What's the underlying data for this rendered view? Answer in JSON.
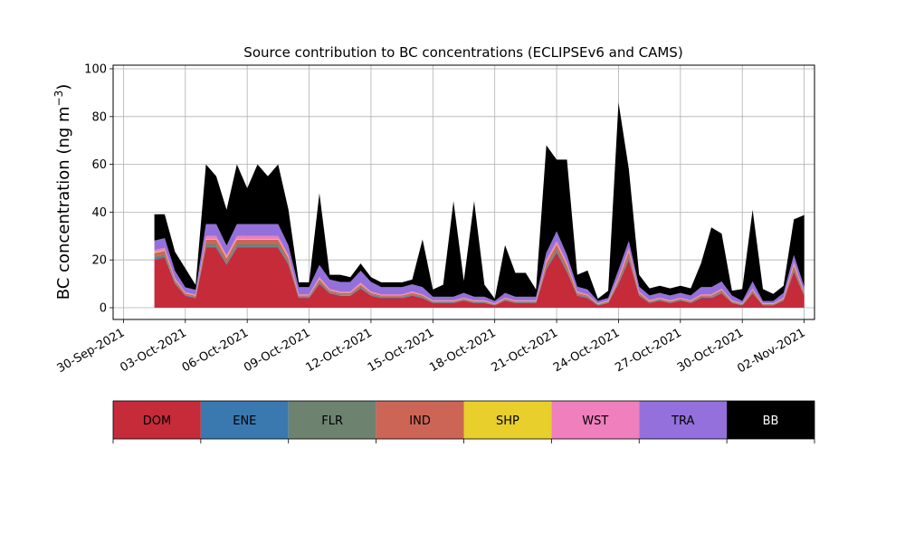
{
  "chart_data": {
    "type": "area",
    "stacked": true,
    "title": "Source contribution to BC concentrations (ECLIPSEv6 and CAMS)",
    "xlabel": "",
    "ylabel": "BC concentration (ng m",
    "ylabel_sup": "−3",
    "ylabel_close": ")",
    "ylim": [
      0,
      100
    ],
    "yticks": [
      0,
      20,
      40,
      60,
      80,
      100
    ],
    "xlim": [
      "2021-09-29T12:00",
      "2021-11-02T12:00"
    ],
    "xticks": [
      "2021-09-30",
      "2021-10-03",
      "2021-10-06",
      "2021-10-09",
      "2021-10-12",
      "2021-10-15",
      "2021-10-18",
      "2021-10-21",
      "2021-10-24",
      "2021-10-27",
      "2021-10-30",
      "2021-11-02"
    ],
    "xtick_labels": [
      "30-Sep-2021",
      "03-Oct-2021",
      "06-Oct-2021",
      "09-Oct-2021",
      "12-Oct-2021",
      "15-Oct-2021",
      "18-Oct-2021",
      "21-Oct-2021",
      "24-Oct-2021",
      "27-Oct-2021",
      "30-Oct-2021",
      "02-Nov-2021"
    ],
    "grid": true,
    "x": [
      "2021-10-01T12:00",
      "2021-10-02T00:00",
      "2021-10-02T12:00",
      "2021-10-03T00:00",
      "2021-10-03T12:00",
      "2021-10-04T00:00",
      "2021-10-04T12:00",
      "2021-10-05T00:00",
      "2021-10-05T12:00",
      "2021-10-06T00:00",
      "2021-10-06T12:00",
      "2021-10-07T00:00",
      "2021-10-07T12:00",
      "2021-10-08T00:00",
      "2021-10-08T12:00",
      "2021-10-09T00:00",
      "2021-10-09T12:00",
      "2021-10-10T00:00",
      "2021-10-10T12:00",
      "2021-10-11T00:00",
      "2021-10-11T12:00",
      "2021-10-12T00:00",
      "2021-10-12T12:00",
      "2021-10-13T00:00",
      "2021-10-13T12:00",
      "2021-10-14T00:00",
      "2021-10-14T12:00",
      "2021-10-15T00:00",
      "2021-10-15T12:00",
      "2021-10-16T00:00",
      "2021-10-16T12:00",
      "2021-10-17T00:00",
      "2021-10-17T12:00",
      "2021-10-18T00:00",
      "2021-10-18T12:00",
      "2021-10-19T00:00",
      "2021-10-19T12:00",
      "2021-10-20T00:00",
      "2021-10-20T12:00",
      "2021-10-21T00:00",
      "2021-10-21T12:00",
      "2021-10-22T00:00",
      "2021-10-22T12:00",
      "2021-10-23T00:00",
      "2021-10-23T12:00",
      "2021-10-24T00:00",
      "2021-10-24T12:00",
      "2021-10-25T00:00",
      "2021-10-25T12:00",
      "2021-10-26T00:00",
      "2021-10-26T12:00",
      "2021-10-27T00:00",
      "2021-10-27T12:00",
      "2021-10-28T00:00",
      "2021-10-28T12:00",
      "2021-10-29T00:00",
      "2021-10-29T12:00",
      "2021-10-30T00:00",
      "2021-10-30T12:00",
      "2021-10-31T00:00",
      "2021-10-31T12:00",
      "2021-11-01T00:00",
      "2021-11-01T12:00",
      "2021-11-02T00:00"
    ],
    "series": [
      {
        "name": "DOM",
        "color": "#c62b3a",
        "values": [
          20,
          21,
          10,
          5,
          4,
          25,
          25,
          18,
          25,
          25,
          25,
          25,
          25,
          18,
          4,
          4,
          10,
          6,
          5,
          5,
          8,
          5,
          4,
          4,
          4,
          5,
          4,
          2,
          2,
          2,
          3,
          2,
          2,
          1,
          3,
          2,
          2,
          2,
          16,
          23,
          15,
          5,
          4,
          1,
          2,
          10,
          20,
          5,
          2,
          3,
          2,
          3,
          2,
          4,
          4,
          6,
          2,
          1,
          6,
          1,
          1,
          3,
          15,
          5
        ]
      },
      {
        "name": "ENE",
        "color": "#3a78b0",
        "values": [
          0.5,
          0.5,
          0.3,
          0.2,
          0.2,
          0.5,
          0.5,
          0.4,
          0.5,
          0.5,
          0.5,
          0.5,
          0.5,
          0.4,
          0.2,
          0.2,
          0.3,
          0.2,
          0.2,
          0.2,
          0.3,
          0.2,
          0.2,
          0.2,
          0.2,
          0.2,
          0.2,
          0.1,
          0.1,
          0.1,
          0.1,
          0.1,
          0.1,
          0.1,
          0.1,
          0.1,
          0.1,
          0.1,
          0.4,
          0.5,
          0.4,
          0.2,
          0.2,
          0.1,
          0.1,
          0.3,
          0.5,
          0.2,
          0.1,
          0.1,
          0.1,
          0.1,
          0.1,
          0.2,
          0.2,
          0.2,
          0.1,
          0.1,
          0.2,
          0.1,
          0.1,
          0.1,
          0.4,
          0.2
        ]
      },
      {
        "name": "FLR",
        "color": "#6e8270",
        "values": [
          0.8,
          0.8,
          0.5,
          0.3,
          0.3,
          1,
          1,
          0.8,
          1,
          1,
          1,
          1,
          1,
          0.8,
          0.4,
          0.4,
          0.6,
          0.4,
          0.4,
          0.4,
          0.5,
          0.4,
          0.4,
          0.4,
          0.4,
          0.4,
          0.4,
          0.3,
          0.3,
          0.3,
          0.3,
          0.3,
          0.3,
          0.2,
          0.3,
          0.3,
          0.3,
          0.3,
          0.8,
          1,
          0.8,
          0.4,
          0.4,
          0.2,
          0.3,
          0.6,
          1,
          0.4,
          0.3,
          0.3,
          0.3,
          0.3,
          0.3,
          0.4,
          0.4,
          0.5,
          0.3,
          0.2,
          0.5,
          0.2,
          0.2,
          0.3,
          0.8,
          0.4
        ]
      },
      {
        "name": "IND",
        "color": "#cd6556",
        "values": [
          1.5,
          1.5,
          0.8,
          0.5,
          0.5,
          2,
          2,
          1.5,
          2,
          2,
          2,
          2,
          2,
          1.5,
          0.5,
          0.5,
          1,
          0.6,
          0.6,
          0.6,
          0.8,
          0.6,
          0.5,
          0.5,
          0.5,
          0.6,
          0.5,
          0.3,
          0.3,
          0.3,
          0.4,
          0.3,
          0.3,
          0.2,
          0.4,
          0.3,
          0.3,
          0.3,
          1.5,
          2,
          1.5,
          0.6,
          0.5,
          0.2,
          0.3,
          1,
          2,
          0.6,
          0.3,
          0.4,
          0.3,
          0.4,
          0.3,
          0.5,
          0.5,
          0.7,
          0.3,
          0.2,
          0.7,
          0.2,
          0.2,
          0.4,
          1.5,
          0.6
        ]
      },
      {
        "name": "SHP",
        "color": "#e8cf2c",
        "values": [
          0.3,
          0.3,
          0.2,
          0.1,
          0.1,
          0.3,
          0.3,
          0.3,
          0.3,
          0.3,
          0.3,
          0.3,
          0.3,
          0.3,
          0.1,
          0.1,
          0.2,
          0.1,
          0.1,
          0.1,
          0.2,
          0.1,
          0.1,
          0.1,
          0.1,
          0.1,
          0.1,
          0.1,
          0.1,
          0.1,
          0.1,
          0.1,
          0.1,
          0.1,
          0.1,
          0.1,
          0.1,
          0.1,
          0.3,
          0.3,
          0.3,
          0.1,
          0.1,
          0.1,
          0.1,
          0.2,
          0.3,
          0.1,
          0.1,
          0.1,
          0.1,
          0.1,
          0.1,
          0.1,
          0.1,
          0.1,
          0.1,
          0.1,
          0.1,
          0.1,
          0.1,
          0.1,
          0.3,
          0.1
        ]
      },
      {
        "name": "WST",
        "color": "#ef7fbd",
        "values": [
          1,
          1,
          0.6,
          0.4,
          0.4,
          1.2,
          1.2,
          1,
          1.2,
          1.2,
          1.2,
          1.2,
          1.2,
          1,
          0.4,
          0.4,
          0.8,
          0.5,
          0.5,
          0.5,
          0.7,
          0.5,
          0.4,
          0.4,
          0.4,
          0.5,
          0.4,
          0.3,
          0.3,
          0.3,
          0.3,
          0.3,
          0.3,
          0.2,
          0.3,
          0.3,
          0.3,
          0.3,
          1,
          1.2,
          1,
          0.5,
          0.4,
          0.2,
          0.3,
          0.8,
          1.2,
          0.5,
          0.3,
          0.3,
          0.3,
          0.3,
          0.3,
          0.4,
          0.4,
          0.5,
          0.3,
          0.2,
          0.5,
          0.2,
          0.2,
          0.3,
          1,
          0.5
        ]
      },
      {
        "name": "TRA",
        "color": "#9370db",
        "values": [
          4,
          4,
          3,
          2,
          2,
          5,
          5,
          4,
          5,
          5,
          5,
          5,
          5,
          4,
          3,
          3,
          5,
          4,
          4,
          4,
          5,
          4,
          3,
          3,
          3,
          3,
          3,
          1.5,
          1.5,
          1.5,
          2,
          1.5,
          1.5,
          1,
          2,
          1.5,
          1.5,
          1.5,
          3,
          4,
          3,
          2,
          2,
          1,
          1,
          3,
          3,
          2,
          2,
          2,
          2,
          2,
          2,
          3,
          3,
          3,
          2,
          1,
          3,
          1,
          1,
          2,
          3,
          2
        ]
      },
      {
        "name": "BB",
        "color": "#000000",
        "values": [
          11,
          10,
          8,
          8,
          2,
          25,
          20,
          15,
          25,
          15,
          25,
          20,
          25,
          15,
          2,
          2,
          30,
          2,
          3,
          2,
          3,
          2,
          2,
          2,
          2,
          2,
          20,
          3,
          5,
          40,
          5,
          40,
          5,
          1,
          20,
          10,
          10,
          3,
          45,
          30,
          40,
          5,
          8,
          1,
          3,
          70,
          30,
          5,
          3,
          3,
          3,
          3,
          3,
          10,
          25,
          20,
          2,
          5,
          30,
          5,
          3,
          3,
          15,
          30
        ]
      }
    ]
  },
  "legend": {
    "items": [
      {
        "label": "DOM",
        "color": "#c62b3a",
        "text_color": "#000000"
      },
      {
        "label": "ENE",
        "color": "#3a78b0",
        "text_color": "#000000"
      },
      {
        "label": "FLR",
        "color": "#6e8270",
        "text_color": "#000000"
      },
      {
        "label": "IND",
        "color": "#cd6556",
        "text_color": "#000000"
      },
      {
        "label": "SHP",
        "color": "#e8cf2c",
        "text_color": "#000000"
      },
      {
        "label": "WST",
        "color": "#ef7fbd",
        "text_color": "#000000"
      },
      {
        "label": "TRA",
        "color": "#9370db",
        "text_color": "#000000"
      },
      {
        "label": "BB",
        "color": "#000000",
        "text_color": "#ffffff"
      }
    ]
  }
}
